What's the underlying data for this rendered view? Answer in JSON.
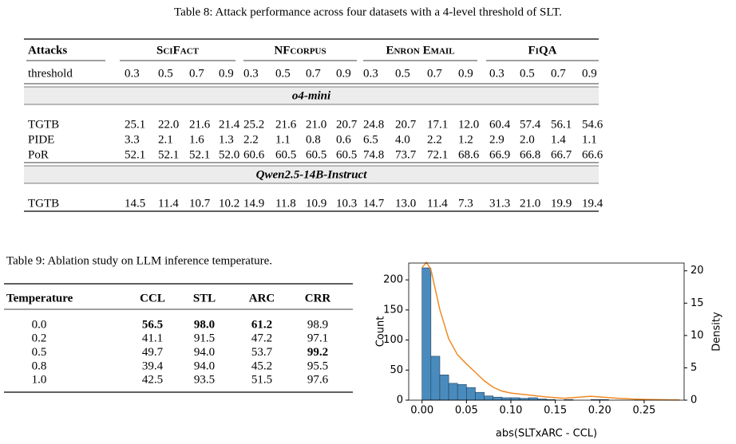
{
  "table8": {
    "caption": "Table 8: Attack performance across four datasets with a 4-level threshold of SLT.",
    "attacks_header": "Attacks",
    "datasets": [
      "SciFact",
      "NFcorpus",
      "Enron Email",
      "FiQA"
    ],
    "threshold_header": "threshold",
    "thresholds": [
      "0.3",
      "0.5",
      "0.7",
      "0.9"
    ],
    "sections": [
      {
        "name": "o4-mini",
        "rows": [
          {
            "label": "TGTB",
            "values": [
              "25.1",
              "22.0",
              "21.6",
              "21.4",
              "25.2",
              "21.6",
              "21.0",
              "20.7",
              "24.8",
              "20.7",
              "17.1",
              "12.0",
              "60.4",
              "57.4",
              "56.1",
              "54.6"
            ]
          },
          {
            "label": "PIDE",
            "values": [
              "3.3",
              "2.1",
              "1.6",
              "1.3",
              "2.2",
              "1.1",
              "0.8",
              "0.6",
              "6.5",
              "4.0",
              "2.2",
              "1.2",
              "2.9",
              "2.0",
              "1.4",
              "1.1"
            ]
          },
          {
            "label": "PoR",
            "values": [
              "52.1",
              "52.1",
              "52.1",
              "52.0",
              "60.6",
              "60.5",
              "60.5",
              "60.5",
              "74.8",
              "73.7",
              "72.1",
              "68.6",
              "66.9",
              "66.8",
              "66.7",
              "66.6"
            ]
          }
        ]
      },
      {
        "name": "Qwen2.5-14B-Instruct",
        "rows": [
          {
            "label": "TGTB",
            "values": [
              "14.5",
              "11.4",
              "10.7",
              "10.2",
              "14.9",
              "11.8",
              "10.9",
              "10.3",
              "14.7",
              "13.0",
              "11.4",
              "7.3",
              "31.3",
              "21.0",
              "19.9",
              "19.4"
            ]
          }
        ]
      }
    ]
  },
  "table9": {
    "caption": "Table 9: Ablation study on LLM inference temperature.",
    "headers": [
      "Temperature",
      "CCL",
      "STL",
      "ARC",
      "CRR"
    ],
    "rows": [
      [
        "0.0",
        "56.5",
        "98.0",
        "61.2",
        "98.9"
      ],
      [
        "0.2",
        "41.1",
        "91.5",
        "47.2",
        "97.1"
      ],
      [
        "0.5",
        "49.7",
        "94.0",
        "53.7",
        "99.2"
      ],
      [
        "0.8",
        "39.4",
        "94.0",
        "45.2",
        "95.5"
      ],
      [
        "1.0",
        "42.5",
        "93.5",
        "51.5",
        "97.6"
      ]
    ]
  },
  "chart_data": {
    "type": "histogram",
    "xlabel": "abs(SLTxARC - CCL)",
    "ylabel": "Count",
    "y2label": "Density",
    "color": "#4a8bbd",
    "bins": [
      0,
      0.01,
      0.02,
      0.03,
      0.04,
      0.05,
      0.06,
      0.07,
      0.08,
      0.09,
      0.1,
      0.11,
      0.12,
      0.13,
      0.14,
      0.15,
      0.16,
      0.17,
      0.18,
      0.19,
      0.2,
      0.21,
      0.22,
      0.23,
      0.24,
      0.25,
      0.26,
      0.27,
      0.28,
      0.29
    ],
    "counts": [
      220,
      73,
      42,
      28,
      26,
      21,
      13,
      7,
      5,
      4,
      4,
      3,
      4,
      2,
      1,
      0,
      1,
      0,
      0,
      1,
      1,
      0,
      0,
      0,
      1,
      0,
      0,
      0,
      0
    ],
    "density": {
      "color": "#f08a24",
      "axis": "y2",
      "x": [
        0,
        0.005,
        0.01,
        0.02,
        0.03,
        0.04,
        0.05,
        0.06,
        0.07,
        0.08,
        0.09,
        0.1,
        0.12,
        0.14,
        0.16,
        0.18,
        0.19,
        0.2,
        0.22,
        0.24,
        0.26,
        0.28,
        0.29
      ],
      "values": [
        20.5,
        21.3,
        20.2,
        14,
        9.5,
        7,
        5.6,
        4.3,
        3,
        2,
        1.4,
        1.1,
        0.8,
        0.5,
        0.3,
        0.5,
        0.6,
        0.5,
        0.3,
        0.15,
        0.1,
        0.05,
        0.03
      ]
    },
    "xlim": [
      -0.015,
      0.295
    ],
    "xticks": [
      {
        "value": 0,
        "label": "0.00"
      },
      {
        "value": 0.05,
        "label": "0.05"
      },
      {
        "value": 0.1,
        "label": "0.10"
      },
      {
        "value": 0.15,
        "label": "0.15"
      },
      {
        "value": 0.2,
        "label": "0.20"
      },
      {
        "value": 0.25,
        "label": "0.25"
      }
    ],
    "ylim": [
      0,
      228
    ],
    "yticks": [
      0,
      50,
      100,
      150,
      200
    ],
    "y2lim": [
      0,
      21.2
    ],
    "y2ticks": [
      0,
      5,
      10,
      15,
      20
    ]
  }
}
